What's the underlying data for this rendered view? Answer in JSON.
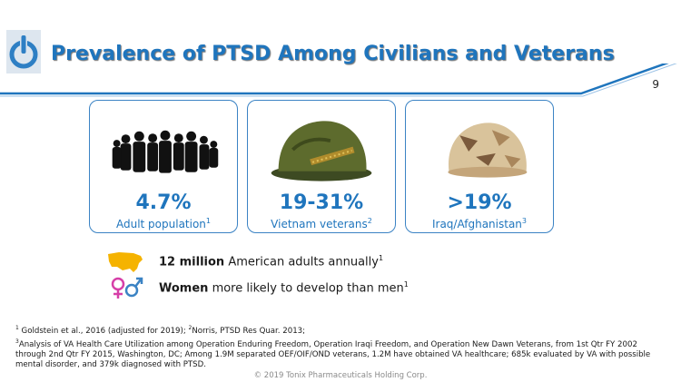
{
  "header": {
    "title": "Prevalence of PTSD Among Civilians and Veterans",
    "page_number": "9",
    "brand_color": "#1f75bd"
  },
  "cards": [
    {
      "stat": "4.7%",
      "label": "Adult population",
      "ref": "1",
      "icon": "crowd-silhouette-icon"
    },
    {
      "stat": "19-31%",
      "label": "Vietnam veterans",
      "ref": "2",
      "icon": "vietnam-helmet-icon"
    },
    {
      "stat": ">19%",
      "label": "Iraq/Afghanistan",
      "ref": "3",
      "icon": "desert-helmet-icon"
    }
  ],
  "facts": [
    {
      "bold": "12 million",
      "text": " American adults annually",
      "ref": "1",
      "icon": "us-map-icon"
    },
    {
      "bold": "Women",
      "text": " more likely to develop than men",
      "ref": "1",
      "icon": "gender-symbols-icon"
    }
  ],
  "footnotes": {
    "line1_ref1": "1",
    "line1_a": " Goldstein et al., 2016 (adjusted for 2019);  ",
    "line1_ref2": "2",
    "line1_b": "Norris, PTSD Res Quar. 2013;",
    "line2_ref3": "3",
    "line2": "Analysis of VA Health Care Utilization among Operation Enduring Freedom, Operation Iraqi Freedom, and Operation New Dawn Veterans, from 1st Qtr FY 2002 through 2nd Qtr FY 2015, Washington, DC; Among 1.9M separated OEF/OIF/OND veterans, 1.2M have obtained VA healthcare; 685k evaluated by VA with possible mental disorder, and 379k diagnosed with PTSD."
  },
  "copyright": "© 2019 Tonix Pharmaceuticals Holding Corp."
}
